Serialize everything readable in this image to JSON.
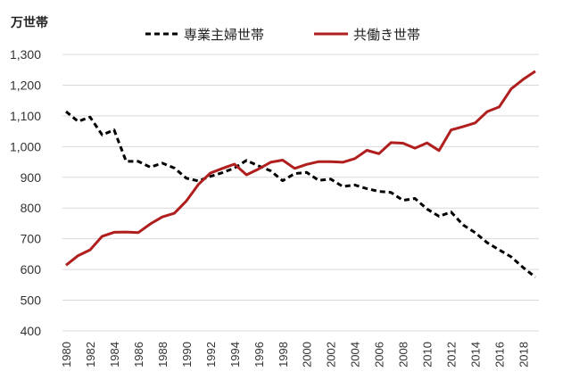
{
  "chart_data": {
    "type": "line",
    "ylabel": "万世帯",
    "ylim": [
      400,
      1300
    ],
    "yticks": [
      400,
      500,
      600,
      700,
      800,
      900,
      1000,
      1100,
      1200,
      1300
    ],
    "ytick_labels": [
      "400",
      "500",
      "600",
      "700",
      "800",
      "900",
      "1,000",
      "1,100",
      "1,200",
      "1,300"
    ],
    "x": [
      1980,
      1981,
      1982,
      1983,
      1984,
      1985,
      1986,
      1987,
      1988,
      1989,
      1990,
      1991,
      1992,
      1993,
      1994,
      1995,
      1996,
      1997,
      1998,
      1999,
      2000,
      2001,
      2002,
      2003,
      2004,
      2005,
      2006,
      2007,
      2008,
      2009,
      2010,
      2011,
      2012,
      2013,
      2014,
      2015,
      2016,
      2017,
      2018,
      2019
    ],
    "xtick_labels": [
      "1980",
      "1982",
      "1984",
      "1986",
      "1988",
      "1990",
      "1992",
      "1994",
      "1996",
      "1998",
      "2000",
      "2002",
      "2004",
      "2006",
      "2008",
      "2010",
      "2012",
      "2014",
      "2016",
      "2018"
    ],
    "grid": true,
    "legend_position": "top",
    "series": [
      {
        "name": "専業主婦世帯",
        "color": "#000000",
        "style": "dashed",
        "values": [
          1114,
          1082,
          1096,
          1038,
          1054,
          952,
          952,
          933,
          946,
          930,
          897,
          888,
          903,
          915,
          930,
          955,
          937,
          921,
          889,
          912,
          916,
          890,
          894,
          870,
          875,
          863,
          854,
          851,
          825,
          831,
          797,
          773,
          787,
          745,
          720,
          687,
          664,
          641,
          606,
          575
        ]
      },
      {
        "name": "共働き世帯",
        "color": "#b01e1e",
        "style": "solid",
        "values": [
          614,
          645,
          664,
          708,
          721,
          722,
          720,
          748,
          771,
          783,
          823,
          877,
          914,
          929,
          943,
          908,
          927,
          949,
          956,
          929,
          942,
          951,
          951,
          949,
          961,
          988,
          977,
          1013,
          1011,
          995,
          1012,
          987,
          1054,
          1065,
          1077,
          1114,
          1129,
          1188,
          1219,
          1245
        ]
      }
    ]
  }
}
